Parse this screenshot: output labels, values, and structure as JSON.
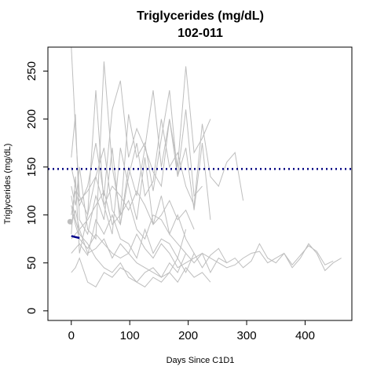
{
  "chart_data": {
    "type": "line",
    "title": "Triglycerides (mg/dL)",
    "subtitle": "102-011",
    "xlabel": "Days Since C1D1",
    "ylabel": "Triglycerides (mg/dL)",
    "xlim": [
      -40,
      480
    ],
    "ylim": [
      -10,
      275
    ],
    "xticks": [
      0,
      100,
      200,
      300,
      400
    ],
    "yticks": [
      0,
      50,
      100,
      150,
      200,
      250
    ],
    "grid": false,
    "reference_line": {
      "y": 148,
      "style": "dotted",
      "color": "#000080"
    },
    "colors": {
      "background_series": "#bebebe",
      "highlight_series": "#00008b",
      "highlight_point": "#bebebe",
      "reference_line": "#000080"
    },
    "background_series": [
      {
        "x": [
          0,
          7,
          14,
          28,
          42,
          56,
          70,
          84,
          98,
          112,
          126,
          140,
          154,
          168,
          182,
          196,
          210,
          224,
          238
        ],
        "y": [
          275,
          190,
          120,
          100,
          140,
          170,
          105,
          90,
          150,
          120,
          170,
          145,
          130,
          200,
          150,
          255,
          165,
          180,
          200
        ]
      },
      {
        "x": [
          0,
          7,
          14,
          28,
          42,
          56,
          70,
          84,
          98,
          112,
          126,
          140,
          154,
          168,
          182,
          196,
          210,
          224,
          238,
          252,
          266,
          280,
          294
        ],
        "y": [
          160,
          205,
          95,
          80,
          120,
          95,
          170,
          90,
          140,
          175,
          120,
          135,
          200,
          150,
          165,
          130,
          110,
          195,
          140,
          130,
          155,
          165,
          115
        ]
      },
      {
        "x": [
          0,
          7,
          14,
          28,
          42,
          56,
          70,
          84,
          98,
          112,
          126,
          140,
          154,
          168,
          182,
          196,
          210,
          224,
          238,
          252,
          266,
          280,
          294,
          308,
          322,
          336,
          350,
          364,
          378,
          392,
          406,
          420,
          434,
          448,
          462
        ],
        "y": [
          60,
          65,
          70,
          58,
          95,
          80,
          100,
          75,
          70,
          55,
          85,
          60,
          75,
          70,
          55,
          40,
          60,
          45,
          58,
          65,
          50,
          55,
          45,
          52,
          70,
          55,
          50,
          60,
          45,
          55,
          70,
          60,
          42,
          50,
          55
        ]
      },
      {
        "x": [
          0,
          7,
          14,
          28,
          42,
          56,
          70,
          84,
          98,
          112,
          126,
          140,
          154,
          168,
          182,
          196,
          210,
          224,
          238,
          252,
          266,
          280,
          294,
          308,
          322,
          336,
          350,
          364,
          378,
          392,
          406,
          420,
          434,
          448
        ],
        "y": [
          75,
          80,
          85,
          60,
          65,
          75,
          55,
          70,
          60,
          80,
          65,
          55,
          70,
          60,
          45,
          50,
          55,
          60,
          55,
          50,
          45,
          48,
          55,
          60,
          62,
          50,
          55,
          60,
          48,
          58,
          68,
          62,
          48,
          52
        ]
      },
      {
        "x": [
          0,
          7,
          14,
          28,
          42,
          56,
          70,
          84,
          98,
          112,
          126,
          140,
          154,
          168,
          182,
          196
        ],
        "y": [
          40,
          45,
          55,
          30,
          25,
          40,
          35,
          45,
          40,
          30,
          25,
          35,
          30,
          40,
          55,
          85
        ]
      },
      {
        "x": [
          0,
          7,
          14,
          28,
          42,
          56,
          70,
          84,
          98,
          112,
          126,
          140,
          154,
          168,
          182,
          196,
          210,
          224
        ],
        "y": [
          100,
          125,
          110,
          130,
          175,
          120,
          210,
          240,
          160,
          190,
          170,
          230,
          150,
          200,
          140,
          210,
          120,
          130
        ]
      },
      {
        "x": [
          0,
          7,
          14,
          28,
          42,
          56,
          70,
          84,
          98,
          112,
          126,
          140,
          154,
          168,
          182,
          196,
          210
        ],
        "y": [
          80,
          140,
          60,
          100,
          230,
          110,
          80,
          170,
          130,
          95,
          160,
          90,
          120,
          80,
          100,
          75,
          60
        ]
      },
      {
        "x": [
          0,
          7,
          14,
          28,
          42,
          56,
          70,
          84,
          98,
          112,
          126,
          140,
          154,
          168,
          182,
          196,
          210,
          224,
          238
        ],
        "y": [
          130,
          110,
          150,
          85,
          75,
          260,
          150,
          100,
          205,
          160,
          175,
          125,
          180,
          230,
          140,
          170,
          105,
          175,
          95
        ]
      },
      {
        "x": [
          0,
          7,
          14,
          28,
          42,
          56,
          70,
          84,
          98,
          112,
          126,
          140,
          154,
          168,
          182,
          196
        ],
        "y": [
          90,
          105,
          85,
          95,
          110,
          125,
          90,
          100,
          115,
          85,
          75,
          100,
          95,
          80,
          70,
          60
        ]
      },
      {
        "x": [
          0,
          7,
          14,
          28,
          42,
          56,
          70,
          84,
          98,
          112,
          126,
          140,
          154,
          168,
          182,
          196,
          210,
          224,
          238,
          252,
          266
        ],
        "y": [
          120,
          95,
          80,
          70,
          55,
          45,
          40,
          50,
          35,
          30,
          40,
          45,
          35,
          50,
          40,
          60,
          50,
          60,
          40,
          55,
          50
        ]
      },
      {
        "x": [
          0,
          7,
          14,
          28,
          42,
          56,
          70,
          84,
          98,
          112,
          126,
          140,
          154,
          168,
          182,
          196,
          210
        ],
        "y": [
          150,
          130,
          115,
          125,
          140,
          110,
          130,
          120,
          105,
          125,
          110,
          90,
          100,
          115,
          95,
          105,
          85
        ]
      },
      {
        "x": [
          0,
          7,
          14,
          28,
          42,
          56,
          70,
          84,
          98,
          112,
          126,
          140,
          154,
          168,
          182,
          196,
          210,
          224,
          238
        ],
        "y": [
          110,
          90,
          75,
          65,
          80,
          70,
          60,
          55,
          60,
          50,
          45,
          40,
          35,
          40,
          30,
          45,
          35,
          40,
          30
        ]
      }
    ],
    "highlight_series": {
      "x": [
        0,
        7,
        14
      ],
      "y": [
        78,
        77,
        76
      ]
    },
    "highlight_point": {
      "x": -2,
      "y": 93
    }
  }
}
